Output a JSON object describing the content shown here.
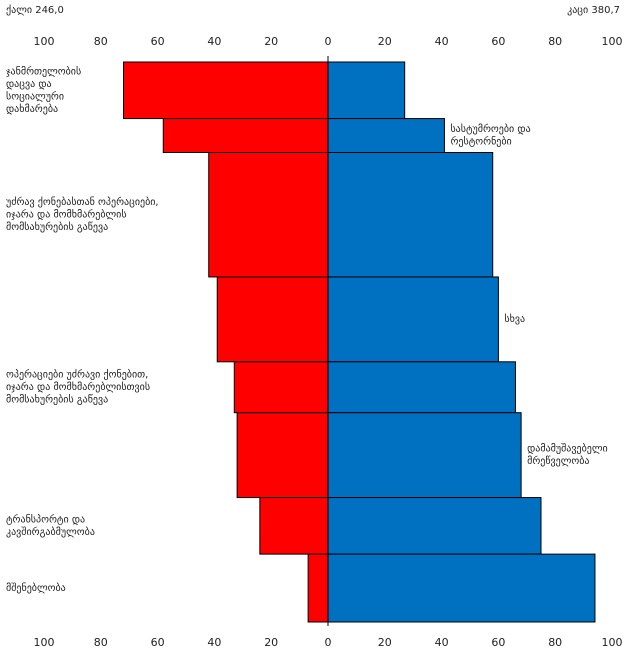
{
  "chart_data": {
    "type": "bar",
    "orientation": "horizontal-population-pyramid",
    "left_header": "ქალი 246,0",
    "right_header": "კაცი 380,7",
    "ticks": [
      "100",
      "80",
      "60",
      "40",
      "20",
      "0",
      "20",
      "40",
      "60",
      "80",
      "100"
    ],
    "xlim": [
      -100,
      100
    ],
    "colors": {
      "left": "#ff0000",
      "right": "#0070c0",
      "outline": "#000000"
    },
    "bands": [
      {
        "left": 72,
        "right": 27,
        "row_span": 1.0
      },
      {
        "left": 58,
        "right": 41,
        "row_span": 0.6
      },
      {
        "left": 42,
        "right": 58,
        "row_span": 2.2
      },
      {
        "left": 39,
        "right": 60,
        "row_span": 1.5
      },
      {
        "left": 33,
        "right": 66,
        "row_span": 0.9
      },
      {
        "left": 32,
        "right": 68,
        "row_span": 1.5
      },
      {
        "left": 24,
        "right": 75,
        "row_span": 1.0
      },
      {
        "left": 7,
        "right": 94,
        "row_span": 1.2
      }
    ],
    "left_labels": [
      {
        "band": 0,
        "lines": [
          "ჯანმრთელობის",
          "დაცვა და",
          "სოციალური",
          "დახმარება"
        ]
      },
      {
        "band": 2,
        "lines": [
          "უძრავ ქონებასთან ოპერაციები,",
          "იჯარა და მომხმარებლის",
          "მომსახურების გაწევა"
        ]
      },
      {
        "band": 4,
        "lines": [
          "ოპერაციები უძრავი ქონებით,",
          "იჯარა და მომხმარებლისთვის",
          "მომსახურების გაწევა"
        ]
      },
      {
        "band": 6,
        "lines": [
          "ტრანსპორტი და",
          "კავშირგაბმულობა"
        ]
      },
      {
        "band": 7,
        "lines": [
          "მშენებლობა"
        ]
      }
    ],
    "right_labels": [
      {
        "band": 1,
        "lines": [
          "სასტუმროები და",
          "რესტორნები"
        ]
      },
      {
        "band": 3,
        "lines": [
          "სხვა"
        ]
      },
      {
        "band": 5,
        "lines": [
          "დამამუშავებელი",
          "მრეწველობა"
        ]
      }
    ]
  }
}
